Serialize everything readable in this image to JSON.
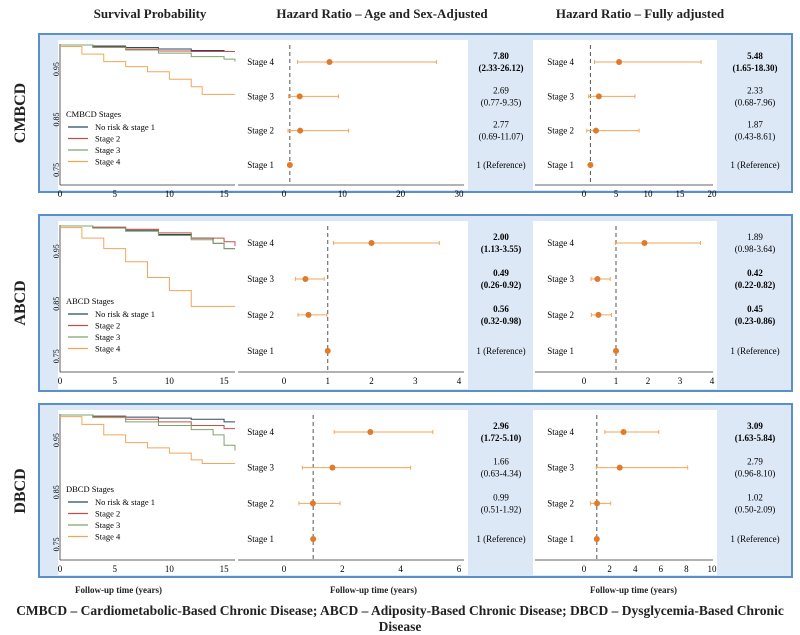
{
  "headers": {
    "survival": "Survival Probability",
    "hr_age_sex": "Hazard Ratio – Age and Sex-Adjusted",
    "hr_full": "Hazard Ratio – Fully adjusted"
  },
  "footer": "CMBCD – Cardiometabolic-Based Chronic Disease; ABCD – Adiposity-Based Chronic Disease; DBCD – Dysglycemia-Based Chronic Disease",
  "xlabel": "Follow-up time (years)",
  "colors": {
    "no_risk": "#2b4a5e",
    "stage2": "#c0504d",
    "stage3": "#7fa36d",
    "stage4": "#f2a65a",
    "point": "#e07b2a",
    "ref_line": "#555555"
  },
  "chart_data": [
    {
      "row": "CMBCD",
      "type": "line",
      "panel": "survival",
      "legend_title": "CMBCD Stages",
      "series": [
        {
          "name": "No risk & stage 1",
          "x": [
            0,
            3,
            6,
            9,
            12,
            15,
            16
          ],
          "y": [
            0.998,
            0.996,
            0.993,
            0.99,
            0.987,
            0.985,
            0.985
          ]
        },
        {
          "name": "Stage 2",
          "x": [
            0,
            3,
            6,
            9,
            12,
            15,
            16
          ],
          "y": [
            0.998,
            0.994,
            0.99,
            0.986,
            0.985,
            0.985,
            0.985
          ]
        },
        {
          "name": "Stage 3",
          "x": [
            0,
            3,
            6,
            9,
            12,
            15,
            16
          ],
          "y": [
            0.998,
            0.993,
            0.988,
            0.982,
            0.975,
            0.97,
            0.965
          ]
        },
        {
          "name": "Stage 4",
          "x": [
            0,
            2,
            4,
            6,
            8,
            10,
            12,
            13,
            16
          ],
          "y": [
            0.995,
            0.98,
            0.965,
            0.955,
            0.945,
            0.93,
            0.915,
            0.9,
            0.9
          ]
        }
      ],
      "xticks": [
        "0",
        "5",
        "10",
        "15"
      ],
      "xlim": [
        0,
        16
      ],
      "yticks": [
        "0.95",
        "0.85",
        "0.75"
      ],
      "ylim": [
        0.72,
        1.0
      ]
    },
    {
      "row": "CMBCD",
      "type": "scatter",
      "panel": "hr_age_sex",
      "stages": [
        "Stage 4",
        "Stage 3",
        "Stage 2",
        "Stage 1"
      ],
      "hr": [
        7.8,
        2.69,
        2.77,
        1
      ],
      "lo": [
        2.33,
        0.77,
        0.69,
        1
      ],
      "hi": [
        26.12,
        9.35,
        11.07,
        1
      ],
      "labels": [
        [
          "7.80",
          "(2.33-26.12)"
        ],
        [
          "2.69",
          "(0.77-9.35)"
        ],
        [
          "2.77",
          "(0.69-11.07)"
        ],
        [
          "1 (Reference)",
          ""
        ]
      ],
      "bold": [
        true,
        false,
        false,
        false
      ],
      "xticks": [
        0,
        10,
        20,
        30
      ],
      "xlim": [
        0,
        30
      ]
    },
    {
      "row": "CMBCD",
      "type": "scatter",
      "panel": "hr_full",
      "stages": [
        "Stage 4",
        "Stage 3",
        "Stage 2",
        "Stage 1"
      ],
      "hr": [
        5.48,
        2.33,
        1.87,
        1
      ],
      "lo": [
        1.65,
        0.68,
        0.43,
        1
      ],
      "hi": [
        18.3,
        7.96,
        8.61,
        1
      ],
      "labels": [
        [
          "5.48",
          "(1.65-18.30)"
        ],
        [
          "2.33",
          "(0.68-7.96)"
        ],
        [
          "1.87",
          "(0.43-8.61)"
        ],
        [
          "1 (Reference)",
          ""
        ]
      ],
      "bold": [
        true,
        false,
        false,
        false
      ],
      "xticks": [
        0,
        5,
        10,
        15,
        20
      ],
      "xlim": [
        0,
        20
      ]
    },
    {
      "row": "ABCD",
      "type": "line",
      "panel": "survival",
      "legend_title": "ABCD Stages",
      "series": [
        {
          "name": "No risk & stage 1",
          "x": [
            0,
            3,
            6,
            9,
            12,
            14,
            15,
            16
          ],
          "y": [
            0.998,
            0.995,
            0.99,
            0.982,
            0.975,
            0.965,
            0.955,
            0.955
          ]
        },
        {
          "name": "Stage 2",
          "x": [
            0,
            3,
            6,
            9,
            12,
            15,
            16
          ],
          "y": [
            0.998,
            0.996,
            0.992,
            0.985,
            0.975,
            0.968,
            0.96
          ]
        },
        {
          "name": "Stage 3",
          "x": [
            0,
            3,
            6,
            9,
            12,
            14,
            15,
            16
          ],
          "y": [
            0.998,
            0.994,
            0.988,
            0.98,
            0.972,
            0.965,
            0.955,
            0.955
          ]
        },
        {
          "name": "Stage 4",
          "x": [
            0,
            2,
            4,
            6,
            8,
            10,
            12,
            16
          ],
          "y": [
            0.995,
            0.975,
            0.955,
            0.93,
            0.9,
            0.875,
            0.845,
            0.845
          ]
        }
      ],
      "xticks": [
        "0",
        "5",
        "10",
        "15"
      ],
      "xlim": [
        0,
        16
      ],
      "yticks": [
        "0.95",
        "0.85",
        "0.75"
      ],
      "ylim": [
        0.72,
        1.0
      ]
    },
    {
      "row": "ABCD",
      "type": "scatter",
      "panel": "hr_age_sex",
      "stages": [
        "Stage 4",
        "Stage 3",
        "Stage 2",
        "Stage 1"
      ],
      "hr": [
        2.0,
        0.49,
        0.56,
        1
      ],
      "lo": [
        1.13,
        0.26,
        0.32,
        1
      ],
      "hi": [
        3.55,
        0.92,
        0.98,
        1
      ],
      "labels": [
        [
          "2.00",
          "(1.13-3.55)"
        ],
        [
          "0.49",
          "(0.26-0.92)"
        ],
        [
          "0.56",
          "(0.32-0.98)"
        ],
        [
          "1 (Reference)",
          ""
        ]
      ],
      "bold": [
        true,
        true,
        true,
        false
      ],
      "xticks": [
        0,
        1,
        2,
        3,
        4
      ],
      "xlim": [
        0,
        4
      ]
    },
    {
      "row": "ABCD",
      "type": "scatter",
      "panel": "hr_full",
      "stages": [
        "Stage 4",
        "Stage 3",
        "Stage 2",
        "Stage 1"
      ],
      "hr": [
        1.89,
        0.42,
        0.45,
        1
      ],
      "lo": [
        0.98,
        0.22,
        0.23,
        1
      ],
      "hi": [
        3.64,
        0.82,
        0.86,
        1
      ],
      "labels": [
        [
          "1.89",
          "(0.98-3.64)"
        ],
        [
          "0.42",
          "(0.22-0.82)"
        ],
        [
          "0.45",
          "(0.23-0.86)"
        ],
        [
          "1 (Reference)",
          ""
        ]
      ],
      "bold": [
        false,
        true,
        true,
        false
      ],
      "xticks": [
        0,
        1,
        2,
        3,
        4
      ],
      "xlim": [
        0,
        4
      ]
    },
    {
      "row": "DBCD",
      "type": "line",
      "panel": "survival",
      "legend_title": "DBCD Stages",
      "series": [
        {
          "name": "No risk & stage 1",
          "x": [
            0,
            3,
            6,
            9,
            12,
            15,
            16
          ],
          "y": [
            0.998,
            0.996,
            0.994,
            0.992,
            0.99,
            0.985,
            0.985
          ]
        },
        {
          "name": "Stage 2",
          "x": [
            0,
            3,
            6,
            9,
            12,
            15,
            16
          ],
          "y": [
            0.998,
            0.995,
            0.99,
            0.985,
            0.978,
            0.972,
            0.972
          ]
        },
        {
          "name": "Stage 3",
          "x": [
            0,
            3,
            6,
            9,
            12,
            14,
            15,
            16
          ],
          "y": [
            0.998,
            0.993,
            0.985,
            0.978,
            0.97,
            0.96,
            0.94,
            0.93
          ]
        },
        {
          "name": "Stage 4",
          "x": [
            0,
            2,
            4,
            6,
            8,
            10,
            12,
            13,
            16
          ],
          "y": [
            0.995,
            0.98,
            0.96,
            0.945,
            0.935,
            0.925,
            0.912,
            0.905,
            0.905
          ]
        }
      ],
      "xticks": [
        "0",
        "5",
        "10",
        "15"
      ],
      "xlim": [
        0,
        16
      ],
      "yticks": [
        "0.95",
        "0.85",
        "0.75"
      ],
      "ylim": [
        0.72,
        1.0
      ]
    },
    {
      "row": "DBCD",
      "type": "scatter",
      "panel": "hr_age_sex",
      "stages": [
        "Stage 4",
        "Stage 3",
        "Stage 2",
        "Stage 1"
      ],
      "hr": [
        2.96,
        1.66,
        0.99,
        1
      ],
      "lo": [
        1.72,
        0.63,
        0.51,
        1
      ],
      "hi": [
        5.1,
        4.34,
        1.92,
        1
      ],
      "labels": [
        [
          "2.96",
          "(1.72-5.10)"
        ],
        [
          "1.66",
          "(0.63-4.34)"
        ],
        [
          "0.99",
          "(0.51-1.92)"
        ],
        [
          "1 (Reference)",
          ""
        ]
      ],
      "bold": [
        true,
        false,
        false,
        false
      ],
      "xticks": [
        0,
        2,
        4,
        6
      ],
      "xlim": [
        0,
        6
      ]
    },
    {
      "row": "DBCD",
      "type": "scatter",
      "panel": "hr_full",
      "stages": [
        "Stage 4",
        "Stage 3",
        "Stage 2",
        "Stage 1"
      ],
      "hr": [
        3.09,
        2.79,
        1.02,
        1
      ],
      "lo": [
        1.63,
        0.96,
        0.5,
        1
      ],
      "hi": [
        5.84,
        8.1,
        2.09,
        1
      ],
      "labels": [
        [
          "3.09",
          "(1.63-5.84)"
        ],
        [
          "2.79",
          "(0.96-8.10)"
        ],
        [
          "1.02",
          "(0.50-2.09)"
        ],
        [
          "1 (Reference)",
          ""
        ]
      ],
      "bold": [
        true,
        false,
        false,
        false
      ],
      "xticks": [
        0,
        2,
        4,
        6,
        8,
        10
      ],
      "xlim": [
        0,
        10
      ]
    }
  ]
}
